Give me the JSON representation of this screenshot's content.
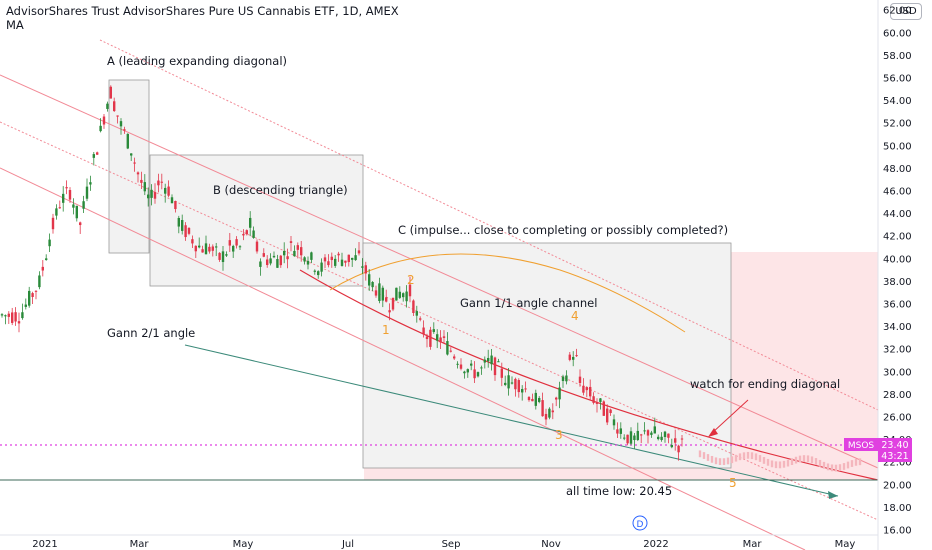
{
  "header": {
    "title": "AdvisorShares Trust AdvisorShares Pure US Cannabis ETF, 1D, AMEX",
    "indicator": "MA"
  },
  "currency_button": "USD",
  "price_tag": {
    "symbol": "MSOS",
    "price": "23.40",
    "countdown": "43:21"
  },
  "dividend_marker": "D",
  "colors": {
    "up": "#2a8a3a",
    "down": "#e2364a",
    "box_fill": "#f2f2f2",
    "box_border": "#9a9a9a",
    "channel": "#f28a96",
    "fan": "#e0303e",
    "ma": "#f0a030",
    "gann_2_1": "#3c8a7a",
    "price_line": "#e040e0",
    "zone": "#fde2e4"
  },
  "chart_data": {
    "type": "candlestick",
    "x_axis": {
      "ticks": [
        "2021",
        "Mar",
        "May",
        "Jul",
        "Sep",
        "Nov",
        "2022",
        "Mar",
        "May"
      ],
      "range": [
        "2020-12",
        "2022-05"
      ]
    },
    "y_axis": {
      "ticks": [
        "16.00",
        "18.00",
        "20.00",
        "22.00",
        "24.00",
        "26.00",
        "28.00",
        "30.00",
        "32.00",
        "34.00",
        "36.00",
        "38.00",
        "40.00",
        "42.00",
        "44.00",
        "46.00",
        "48.00",
        "50.00",
        "52.00",
        "54.00",
        "56.00",
        "58.00",
        "60.00",
        "62.00"
      ],
      "range": [
        16,
        62
      ]
    },
    "key_levels": {
      "last_price": 23.4,
      "all_time_low": 20.45,
      "high": 56.0
    },
    "annotations": [
      "A (leading expanding diagonal)",
      "B (descending triangle)",
      "C (impulse... close to completing or possibly completed?)",
      "Gann 1/1 angle channel",
      "Gann 2/1 angle",
      "watch for ending diagonal",
      "all time low: 20.45"
    ],
    "wave_labels": [
      "1",
      "2",
      "3",
      "4",
      "5"
    ]
  }
}
